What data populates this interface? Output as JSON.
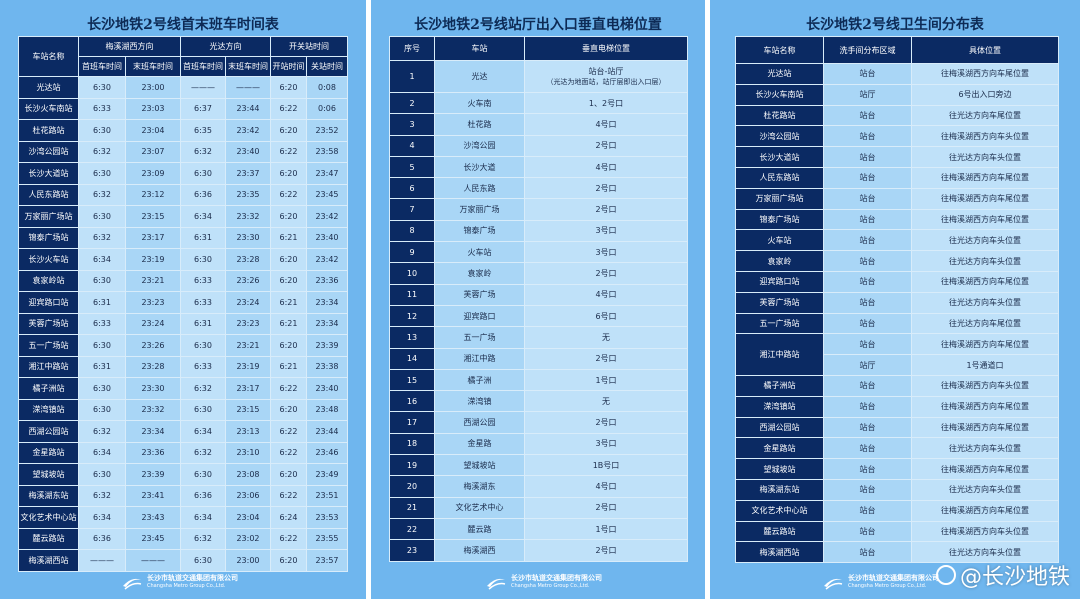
{
  "panel1": {
    "title": "长沙地铁2号线首末班车时间表",
    "h_station": "车站名称",
    "h_dir1": "梅溪湖西方向",
    "h_dir2": "光达方向",
    "h_open": "开关站时间",
    "h_first": "首班车时间",
    "h_last": "末班车时间",
    "h_open_t": "开站时间",
    "h_close_t": "关站时间",
    "rows": [
      [
        "光达站",
        "6:30",
        "23:00",
        "———",
        "———",
        "6:20",
        "0:08"
      ],
      [
        "长沙火车南站",
        "6:33",
        "23:03",
        "6:37",
        "23:44",
        "6:22",
        "0:06"
      ],
      [
        "杜花路站",
        "6:30",
        "23:04",
        "6:35",
        "23:42",
        "6:20",
        "23:52"
      ],
      [
        "沙湾公园站",
        "6:32",
        "23:07",
        "6:32",
        "23:40",
        "6:22",
        "23:58"
      ],
      [
        "长沙大道站",
        "6:30",
        "23:09",
        "6:30",
        "23:37",
        "6:20",
        "23:47"
      ],
      [
        "人民东路站",
        "6:32",
        "23:12",
        "6:36",
        "23:35",
        "6:22",
        "23:45"
      ],
      [
        "万家丽广场站",
        "6:30",
        "23:15",
        "6:34",
        "23:32",
        "6:20",
        "23:42"
      ],
      [
        "锦泰广场站",
        "6:32",
        "23:17",
        "6:31",
        "23:30",
        "6:21",
        "23:40"
      ],
      [
        "长沙火车站",
        "6:34",
        "23:19",
        "6:30",
        "23:28",
        "6:20",
        "23:42"
      ],
      [
        "袁家岭站",
        "6:30",
        "23:21",
        "6:33",
        "23:26",
        "6:20",
        "23:36"
      ],
      [
        "迎宾路口站",
        "6:31",
        "23:23",
        "6:33",
        "23:24",
        "6:21",
        "23:34"
      ],
      [
        "芙蓉广场站",
        "6:33",
        "23:24",
        "6:31",
        "23:23",
        "6:21",
        "23:34"
      ],
      [
        "五一广场站",
        "6:30",
        "23:26",
        "6:30",
        "23:21",
        "6:20",
        "23:39"
      ],
      [
        "湘江中路站",
        "6:31",
        "23:28",
        "6:33",
        "23:19",
        "6:21",
        "23:38"
      ],
      [
        "橘子洲站",
        "6:30",
        "23:30",
        "6:32",
        "23:17",
        "6:22",
        "23:40"
      ],
      [
        "溁湾镇站",
        "6:30",
        "23:32",
        "6:30",
        "23:15",
        "6:20",
        "23:48"
      ],
      [
        "西湖公园站",
        "6:32",
        "23:34",
        "6:34",
        "23:13",
        "6:22",
        "23:44"
      ],
      [
        "金星路站",
        "6:34",
        "23:36",
        "6:32",
        "23:10",
        "6:22",
        "23:46"
      ],
      [
        "望城坡站",
        "6:30",
        "23:39",
        "6:30",
        "23:08",
        "6:20",
        "23:49"
      ],
      [
        "梅溪湖东站",
        "6:32",
        "23:41",
        "6:36",
        "23:06",
        "6:22",
        "23:51"
      ],
      [
        "文化艺术中心站",
        "6:34",
        "23:43",
        "6:34",
        "23:04",
        "6:24",
        "23:53"
      ],
      [
        "麓云路站",
        "6:36",
        "23:45",
        "6:32",
        "23:02",
        "6:22",
        "23:55"
      ],
      [
        "梅溪湖西站",
        "———",
        "———",
        "6:30",
        "23:00",
        "6:20",
        "23:57"
      ]
    ]
  },
  "panel2": {
    "title": "长沙地铁2号线站厅出入口垂直电梯位置",
    "h_no": "序号",
    "h_station": "车站",
    "h_pos": "垂直电梯位置",
    "row1": {
      "no": "1",
      "station": "光达",
      "pos1": "站台-站厅",
      "pos2": "（光达为地面站，站厅层即出入口层）"
    },
    "rows": [
      [
        "2",
        "火车南",
        "1、2号口"
      ],
      [
        "3",
        "杜花路",
        "4号口"
      ],
      [
        "4",
        "沙湾公园",
        "2号口"
      ],
      [
        "5",
        "长沙大道",
        "4号口"
      ],
      [
        "6",
        "人民东路",
        "2号口"
      ],
      [
        "7",
        "万家丽广场",
        "2号口"
      ],
      [
        "8",
        "锦泰广场",
        "3号口"
      ],
      [
        "9",
        "火车站",
        "3号口"
      ],
      [
        "10",
        "袁家岭",
        "2号口"
      ],
      [
        "11",
        "芙蓉广场",
        "4号口"
      ],
      [
        "12",
        "迎宾路口",
        "6号口"
      ],
      [
        "13",
        "五一广场",
        "无"
      ],
      [
        "14",
        "湘江中路",
        "2号口"
      ],
      [
        "15",
        "橘子洲",
        "1号口"
      ],
      [
        "16",
        "溁湾镇",
        "无"
      ],
      [
        "17",
        "西湖公园",
        "2号口"
      ],
      [
        "18",
        "金星路",
        "3号口"
      ],
      [
        "19",
        "望城坡站",
        "1B号口"
      ],
      [
        "20",
        "梅溪湖东",
        "4号口"
      ],
      [
        "21",
        "文化艺术中心",
        "2号口"
      ],
      [
        "22",
        "麓云路",
        "1号口"
      ],
      [
        "23",
        "梅溪湖西",
        "2号口"
      ]
    ]
  },
  "panel3": {
    "title": "长沙地铁2号线卫生间分布表",
    "h_station": "车站名称",
    "h_area": "洗手间分布区域",
    "h_pos": "具体位置",
    "rows_a": [
      [
        "光达站",
        "站台",
        "往梅溪湖西方向车尾位置"
      ],
      [
        "长沙火车南站",
        "站厅",
        "6号出入口旁边"
      ],
      [
        "杜花路站",
        "站台",
        "往光达方向车尾位置"
      ],
      [
        "沙湾公园站",
        "站台",
        "往梅溪湖西方向车头位置"
      ],
      [
        "长沙大道站",
        "站台",
        "往光达方向车头位置"
      ],
      [
        "人民东路站",
        "站台",
        "往梅溪湖西方向车尾位置"
      ],
      [
        "万家丽广场站",
        "站台",
        "往梅溪湖西方向车尾位置"
      ],
      [
        "锦泰广场站",
        "站台",
        "往梅溪湖西方向车尾位置"
      ],
      [
        "火车站",
        "站台",
        "往光达方向车头位置"
      ],
      [
        "袁家岭",
        "站台",
        "往光达方向车头位置"
      ],
      [
        "迎宾路口站",
        "站台",
        "往梅溪湖西方向车尾位置"
      ],
      [
        "芙蓉广场站",
        "站台",
        "往光达方向车头位置"
      ],
      [
        "五一广场站",
        "站台",
        "往光达方向车尾位置"
      ]
    ],
    "xiangjiang": {
      "station": "湘江中路站",
      "area1": "站台",
      "pos1": "往梅溪湖西方向车尾位置",
      "area2": "站厅",
      "pos2": "1号通道口"
    },
    "rows_b": [
      [
        "橘子洲站",
        "站台",
        "往梅溪湖西方向车头位置"
      ],
      [
        "溁湾镇站",
        "站台",
        "往梅溪湖西方向车尾位置"
      ],
      [
        "西湖公园站",
        "站台",
        "往梅溪湖西方向车尾位置"
      ],
      [
        "金星路站",
        "站台",
        "往光达方向车头位置"
      ],
      [
        "望城坡站",
        "站台",
        "往梅溪湖西方向车尾位置"
      ],
      [
        "梅溪湖东站",
        "站台",
        "往光达方向车头位置"
      ],
      [
        "文化艺术中心站",
        "站台",
        "往梅溪湖西方向车尾位置"
      ],
      [
        "麓云路站",
        "站台",
        "往梅溪湖西方向车头位置"
      ],
      [
        "梅溪湖西站",
        "站台",
        "往光达方向车头位置"
      ]
    ]
  },
  "footer": {
    "logo_cn": "长沙市轨道交通集团有限公司",
    "logo_en": "Changsha Metro Group Co.,Ltd.",
    "logo_icon": "metro-logo-icon",
    "watermark": "@长沙地铁",
    "watermark_icon": "weibo-icon"
  },
  "colors": {
    "panel_bg": "#6fb6ee",
    "header_bg": "#0b2a63",
    "cell_light": "#bfe1f9",
    "cell_alt": "#a9d6f6"
  }
}
